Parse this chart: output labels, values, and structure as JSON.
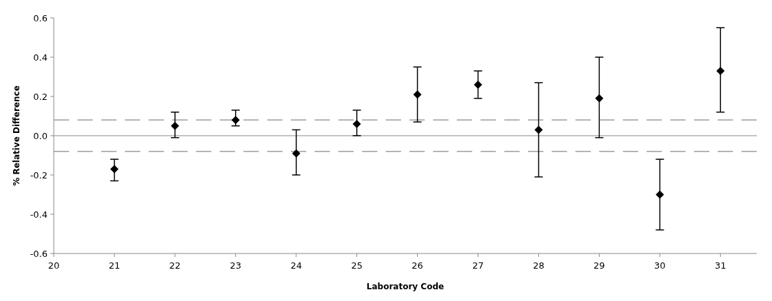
{
  "chart_data": {
    "type": "scatter",
    "xlabel": "Laboratory Code",
    "ylabel": "% Relative Difference",
    "x": [
      21,
      22,
      23,
      24,
      25,
      26,
      27,
      28,
      29,
      30,
      31
    ],
    "xlim": [
      20,
      31.6
    ],
    "xticks": [
      20,
      21,
      22,
      23,
      24,
      25,
      26,
      27,
      28,
      29,
      30,
      31
    ],
    "ylim": [
      -0.6,
      0.6
    ],
    "yticks": [
      {
        "value": -0.6,
        "label": "-0.6"
      },
      {
        "value": -0.4,
        "label": "-0.4"
      },
      {
        "value": -0.2,
        "label": "-0.2"
      },
      {
        "value": 0,
        "label": "0.0"
      },
      {
        "value": 0.2,
        "label": "0.2"
      },
      {
        "value": 0.4,
        "label": "0.4"
      },
      {
        "value": 0.6,
        "label": "0.6"
      }
    ],
    "grid": false,
    "marker": "diamond",
    "series": [
      {
        "color": "#000000",
        "values": [
          -0.17,
          0.05,
          0.08,
          -0.09,
          0.06,
          0.21,
          0.26,
          0.03,
          0.19,
          -0.3,
          0.33
        ],
        "errors": [
          [
            -0.23,
            -0.12
          ],
          [
            -0.01,
            0.12
          ],
          [
            0.05,
            0.13
          ],
          [
            -0.2,
            0.03
          ],
          [
            0,
            0.13
          ],
          [
            0.07,
            0.35
          ],
          [
            0.19,
            0.33
          ],
          [
            -0.21,
            0.27
          ],
          [
            -0.01,
            0.4
          ],
          [
            -0.48,
            -0.12
          ],
          [
            0.12,
            0.55
          ]
        ]
      }
    ],
    "ref_lines": [
      {
        "axis": "y",
        "value": 0,
        "color": "#888888",
        "line_style": "solid"
      },
      {
        "axis": "y",
        "value": 0.08,
        "color": "#888888",
        "line_style": "dashed"
      },
      {
        "axis": "y",
        "value": -0.08,
        "color": "#888888",
        "line_style": "dashed"
      }
    ]
  }
}
